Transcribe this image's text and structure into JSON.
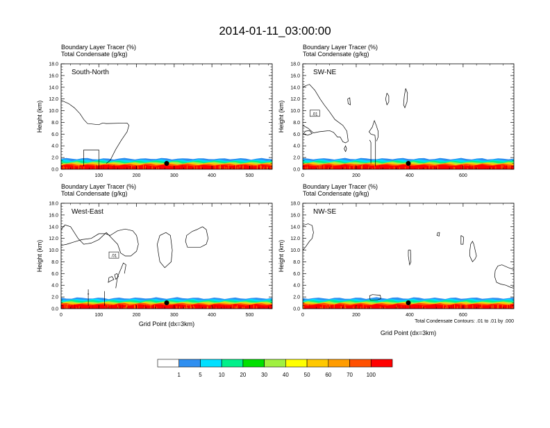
{
  "page_title": "2014-01-11_03:00:00",
  "colors": {
    "levels": [
      "#ffffff",
      "#2f8ff0",
      "#00e0ff",
      "#00f08a",
      "#00e000",
      "#a0f040",
      "#ffff00",
      "#ffc800",
      "#ff9c00",
      "#ff5000",
      "#ff0000"
    ]
  },
  "colorbar": {
    "labels": [
      "1",
      "5",
      "10",
      "20",
      "30",
      "40",
      "50",
      "60",
      "70",
      "100"
    ]
  },
  "chart_data": [
    {
      "type": "contour-cross-section",
      "panel": "South-North",
      "title_lines": [
        "Boundary Layer Tracer   (%)",
        "Total Condensate   (g/kg)"
      ],
      "ylabel": "Height (km)",
      "xlabel": "",
      "ylim": [
        0,
        18
      ],
      "yticks": [
        "0.0",
        "2.0",
        "4.0",
        "6.0",
        "8.0",
        "10.0",
        "12.0",
        "14.0",
        "16.0",
        "18.0"
      ],
      "xlim": [
        0,
        560
      ],
      "xticks": [
        0,
        100,
        200,
        300,
        400,
        500
      ],
      "xtick_labels": [
        "0",
        "100",
        "200",
        "300",
        "400",
        "500"
      ],
      "marker_x": 280,
      "contour_label": "",
      "footnote": ""
    },
    {
      "type": "contour-cross-section",
      "panel": "SW-NE",
      "title_lines": [
        "Boundary Layer Tracer   (%)",
        "Total Condensate   (g/kg)"
      ],
      "ylabel": "Height (km)",
      "xlabel": "",
      "ylim": [
        0,
        18
      ],
      "yticks": [
        "0.0",
        "2.0",
        "4.0",
        "6.0",
        "8.0",
        "10.0",
        "12.0",
        "14.0",
        "16.0",
        "18.0"
      ],
      "xlim": [
        0,
        790
      ],
      "xticks": [
        0,
        200,
        400,
        600
      ],
      "xtick_labels": [
        "0",
        "200",
        "400",
        "600"
      ],
      "marker_x": 395,
      "contour_label": ".01",
      "footnote": ""
    },
    {
      "type": "contour-cross-section",
      "panel": "West-East",
      "title_lines": [
        "Boundary Layer Tracer   (%)",
        "Total Condensate   (g/kg)"
      ],
      "ylabel": "Height (km)",
      "xlabel": "Grid Point (dx=3km)",
      "ylim": [
        0,
        18
      ],
      "yticks": [
        "0.0",
        "2.0",
        "4.0",
        "6.0",
        "8.0",
        "10.0",
        "12.0",
        "14.0",
        "16.0",
        "18.0"
      ],
      "xlim": [
        0,
        560
      ],
      "xticks": [
        0,
        100,
        200,
        300,
        400,
        500
      ],
      "xtick_labels": [
        "0",
        "100",
        "200",
        "300",
        "400",
        "500"
      ],
      "marker_x": 280,
      "contour_label": ".01",
      "footnote": ""
    },
    {
      "type": "contour-cross-section",
      "panel": "NW-SE",
      "title_lines": [
        "Boundary Layer Tracer   (%)",
        "Total Condensate   (g/kg)"
      ],
      "ylabel": "Height (km)",
      "xlabel": "Grid Point (dx=3km)",
      "ylim": [
        0,
        18
      ],
      "yticks": [
        "0.0",
        "2.0",
        "4.0",
        "6.0",
        "8.0",
        "10.0",
        "12.0",
        "14.0",
        "16.0",
        "18.0"
      ],
      "xlim": [
        0,
        790
      ],
      "xticks": [
        0,
        200,
        400,
        600
      ],
      "xtick_labels": [
        "0",
        "200",
        "400",
        "600"
      ],
      "marker_x": 395,
      "contour_label": "",
      "footnote": "Total Condensate Contours: .01 to .01 by .000"
    }
  ]
}
